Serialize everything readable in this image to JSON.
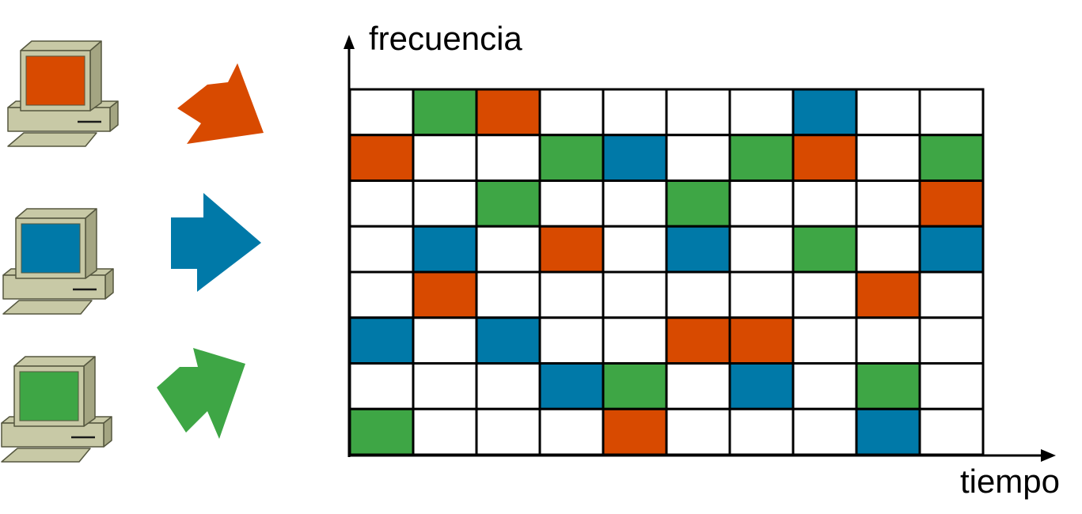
{
  "axes": {
    "y_label": "frecuencia",
    "x_label": "tiempo"
  },
  "colors": {
    "orange": "#d84a00",
    "blue": "#0079a8",
    "green": "#3ea645",
    "empty": "#ffffff",
    "computer_body": "#c8c9a6",
    "computer_shade": "#a4a582"
  },
  "stations": [
    {
      "name": "station-orange",
      "color": "orange"
    },
    {
      "name": "station-blue",
      "color": "blue"
    },
    {
      "name": "station-green",
      "color": "green"
    }
  ],
  "grid": {
    "rows": 8,
    "cols": 10,
    "cells": [
      [
        "",
        "green",
        "orange",
        "",
        "",
        "",
        "",
        "blue",
        "",
        ""
      ],
      [
        "orange",
        "",
        "",
        "green",
        "blue",
        "",
        "green",
        "orange",
        "",
        "green"
      ],
      [
        "",
        "",
        "green",
        "",
        "",
        "green",
        "",
        "",
        "",
        "orange"
      ],
      [
        "",
        "blue",
        "",
        "orange",
        "",
        "blue",
        "",
        "green",
        "",
        "blue"
      ],
      [
        "",
        "orange",
        "",
        "",
        "",
        "",
        "",
        "",
        "orange",
        ""
      ],
      [
        "blue",
        "",
        "blue",
        "",
        "",
        "orange",
        "orange",
        "",
        "",
        ""
      ],
      [
        "",
        "",
        "",
        "blue",
        "green",
        "",
        "blue",
        "",
        "green",
        ""
      ],
      [
        "green",
        "",
        "",
        "",
        "orange",
        "",
        "",
        "",
        "blue",
        ""
      ]
    ]
  }
}
